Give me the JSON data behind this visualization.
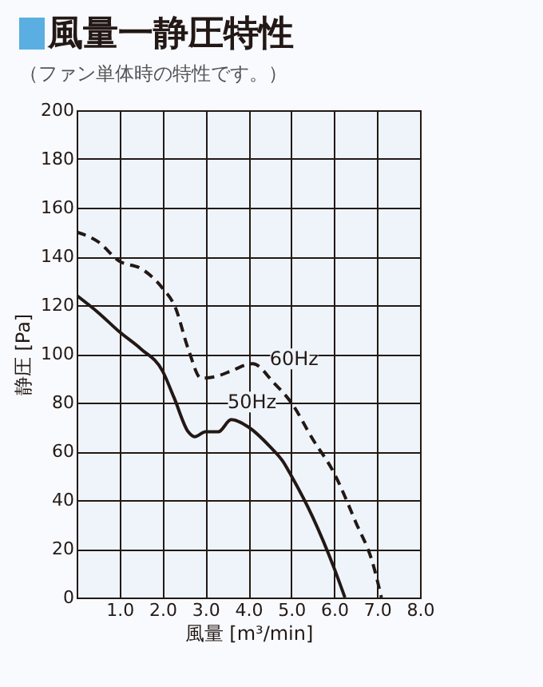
{
  "chart_data": {
    "type": "line",
    "title": "風量一静圧特性",
    "subtitle": "（ファン単体時の特性です。）",
    "xlabel": "風量 [m³/min]",
    "ylabel": "静圧 [Pa]",
    "xlim": [
      0,
      8
    ],
    "xticks": [
      {
        "value": 1,
        "label": "1.0"
      },
      {
        "value": 2,
        "label": "2.0"
      },
      {
        "value": 3,
        "label": "3.0"
      },
      {
        "value": 4,
        "label": "4.0"
      },
      {
        "value": 5,
        "label": "5.0"
      },
      {
        "value": 6,
        "label": "6.0"
      },
      {
        "value": 7,
        "label": "7.0"
      },
      {
        "value": 8,
        "label": "8.0"
      }
    ],
    "ylim": [
      0,
      200
    ],
    "yticks": [
      0,
      20,
      40,
      60,
      80,
      100,
      120,
      140,
      160,
      180,
      200
    ],
    "grid": true,
    "series": [
      {
        "name": "60Hz",
        "color": "#231815",
        "line_style": "dashed",
        "x": [
          0,
          0.5,
          1,
          1.5,
          2,
          2.3,
          2.6,
          2.9,
          3.3,
          3.6,
          4.1,
          4.6,
          5,
          5.5,
          6,
          6.5,
          6.9,
          7.1
        ],
        "values": [
          150,
          146,
          138,
          135,
          127,
          119,
          102,
          90,
          91,
          93,
          96,
          88,
          80,
          65,
          51,
          31,
          14,
          0
        ]
      },
      {
        "name": "50Hz",
        "color": "#231815",
        "line_style": "solid",
        "x": [
          0,
          0.5,
          1,
          1.5,
          2,
          2.27,
          2.6,
          2.75,
          3,
          3.3,
          3.6,
          4,
          4.5,
          4.8,
          5,
          5.5,
          6,
          6.25
        ],
        "values": [
          124,
          117,
          109,
          102,
          93,
          82,
          68,
          66,
          68,
          68,
          73,
          70,
          62,
          56,
          50,
          33,
          12,
          0
        ]
      }
    ]
  }
}
